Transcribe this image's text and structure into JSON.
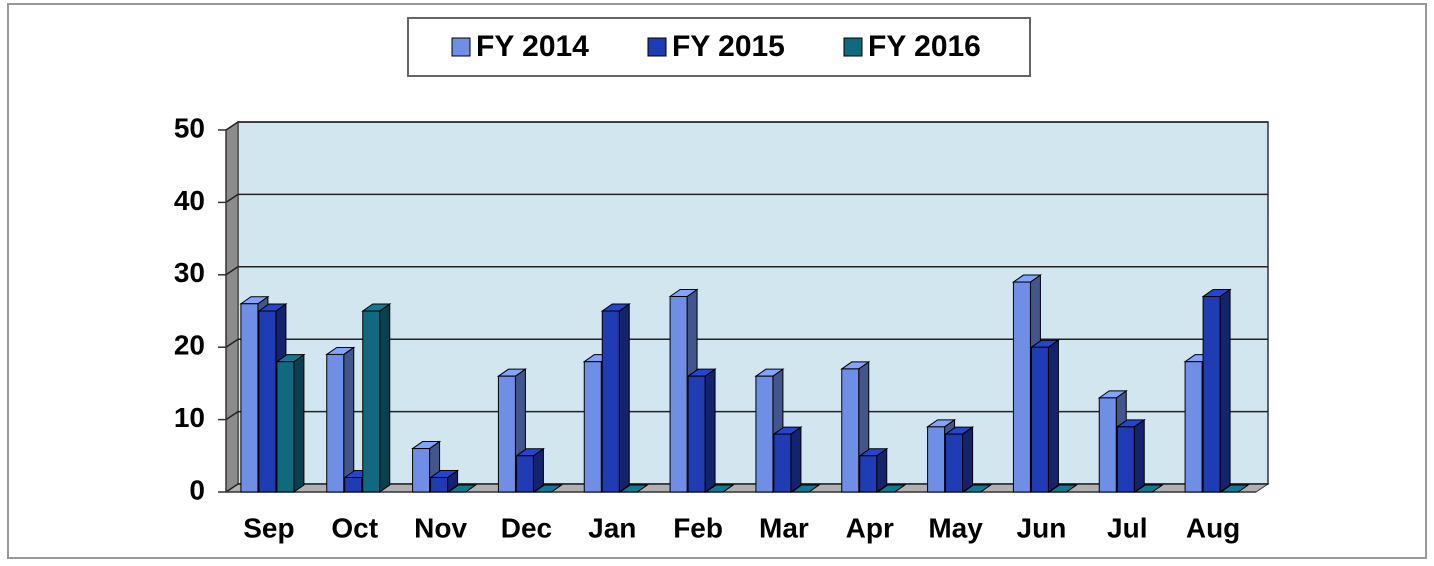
{
  "chart_data": {
    "type": "bar3d",
    "categories": [
      "Sep",
      "Oct",
      "Nov",
      "Dec",
      "Jan",
      "Feb",
      "Mar",
      "Apr",
      "May",
      "Jun",
      "Jul",
      "Aug"
    ],
    "series": [
      {
        "name": "FY 2014",
        "color": "#6f8fe6",
        "values": [
          26,
          19,
          6,
          16,
          18,
          27,
          16,
          17,
          9,
          29,
          13,
          18
        ]
      },
      {
        "name": "FY 2015",
        "color": "#1f3cb4",
        "values": [
          25,
          2,
          2,
          5,
          25,
          16,
          8,
          5,
          8,
          20,
          9,
          27
        ]
      },
      {
        "name": "FY 2016",
        "color": "#0f6a80",
        "values": [
          18,
          25,
          0,
          0,
          0,
          0,
          0,
          0,
          0,
          0,
          0,
          0
        ]
      }
    ],
    "ylim": [
      0,
      50
    ],
    "yticks": [
      0,
      10,
      20,
      30,
      40,
      50
    ],
    "grid": true,
    "legend": "top"
  }
}
